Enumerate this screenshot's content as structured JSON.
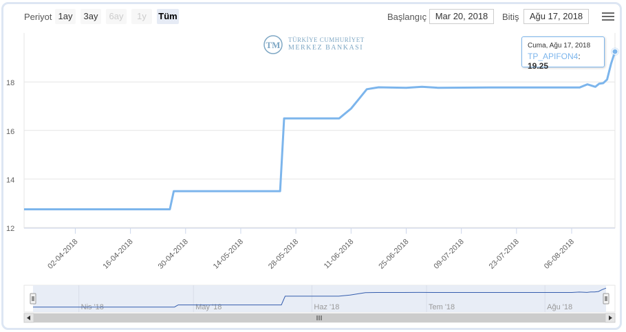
{
  "toolbar": {
    "period_label": "Periyot",
    "range_buttons": [
      {
        "label": "1ay",
        "state": "normal"
      },
      {
        "label": "3ay",
        "state": "normal"
      },
      {
        "label": "6ay",
        "state": "disabled"
      },
      {
        "label": "1y",
        "state": "disabled"
      },
      {
        "label": "Tüm",
        "state": "selected"
      }
    ],
    "start_label": "Başlangıç",
    "start_value": "Mar 20, 2018",
    "end_label": "Bitiş",
    "end_value": "Ağu 17, 2018",
    "menu_icon": "hamburger-menu-icon"
  },
  "logo": {
    "mark": "TCMB",
    "line1": "TÜRKİYE CUMHURİYET",
    "line2": "MERKEZ BANKASI"
  },
  "tooltip": {
    "date": "Cuma, Ağu 17, 2018",
    "series_name": "TP_APIFON4",
    "value": "19.25"
  },
  "navigator": {
    "labels": [
      "Nis '18",
      "May '18",
      "Haz '18",
      "Tem '18",
      "Ağu '18"
    ],
    "scroll_left_icon": "arrow-left-icon",
    "scroll_right_icon": "arrow-right-icon",
    "scroll_grip_icon": "grip-icon"
  },
  "colors": {
    "series": "#7cb5ec",
    "navigator_series": "#335cad",
    "navigator_mask": "#e6ebf5"
  },
  "chart_data": {
    "type": "line",
    "title": "",
    "xlabel": "",
    "ylabel": "",
    "ylim": [
      12,
      20
    ],
    "yticks": [
      12,
      14,
      16,
      18
    ],
    "xlim": [
      "2018-03-20",
      "2018-08-17"
    ],
    "xtick_labels": [
      "02-04-2018",
      "16-04-2018",
      "30-04-2018",
      "14-05-2018",
      "28-05-2018",
      "11-06-2018",
      "25-06-2018",
      "09-07-2018",
      "23-07-2018",
      "06-08-2018"
    ],
    "series": [
      {
        "name": "TP_APIFON4",
        "points": [
          [
            "2018-03-20",
            12.75
          ],
          [
            "2018-04-26",
            12.75
          ],
          [
            "2018-04-27",
            13.5
          ],
          [
            "2018-05-24",
            13.5
          ],
          [
            "2018-05-25",
            16.5
          ],
          [
            "2018-06-08",
            16.5
          ],
          [
            "2018-06-11",
            16.9
          ],
          [
            "2018-06-13",
            17.3
          ],
          [
            "2018-06-15",
            17.7
          ],
          [
            "2018-06-18",
            17.78
          ],
          [
            "2018-06-25",
            17.76
          ],
          [
            "2018-06-29",
            17.8
          ],
          [
            "2018-07-03",
            17.76
          ],
          [
            "2018-07-16",
            17.77
          ],
          [
            "2018-08-08",
            17.77
          ],
          [
            "2018-08-10",
            17.9
          ],
          [
            "2018-08-12",
            17.8
          ],
          [
            "2018-08-13",
            17.93
          ],
          [
            "2018-08-14",
            17.95
          ],
          [
            "2018-08-15",
            18.1
          ],
          [
            "2018-08-16",
            18.75
          ],
          [
            "2018-08-17",
            19.25
          ]
        ]
      }
    ]
  }
}
